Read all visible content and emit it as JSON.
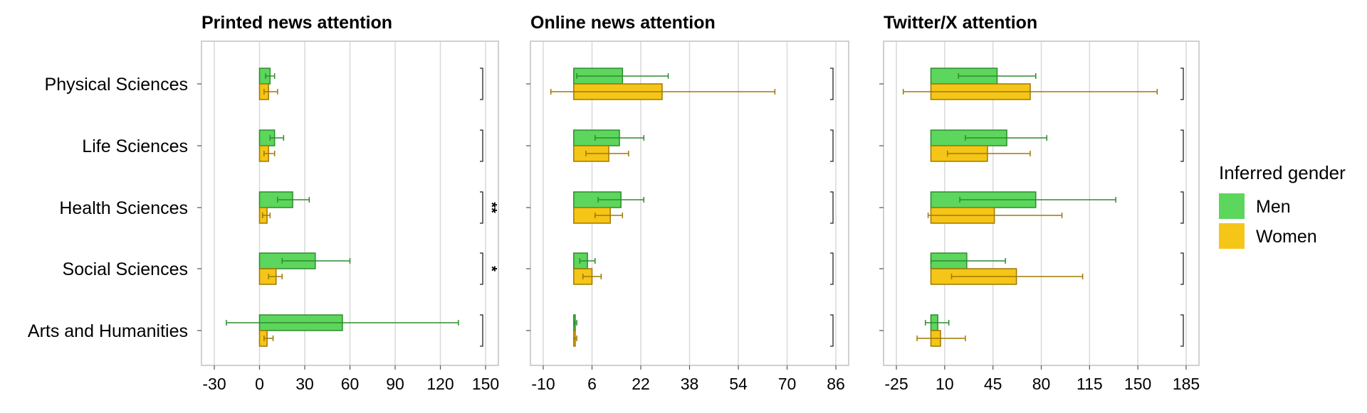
{
  "legend": {
    "title": "Inferred gender",
    "items": [
      {
        "label": "Men",
        "fill": "#5cd65c",
        "stroke": "#2e8b2e"
      },
      {
        "label": "Women",
        "fill": "#f5c518",
        "stroke": "#a07800"
      }
    ]
  },
  "chart_data": [
    {
      "type": "bar",
      "orientation": "horizontal",
      "title": "Printed news attention",
      "categories": [
        "Physical Sciences",
        "Life Sciences",
        "Health Sciences",
        "Social Sciences",
        "Arts and Humanities"
      ],
      "xticks": [
        -30,
        0,
        30,
        60,
        90,
        120,
        150
      ],
      "xlim": [
        -30,
        150
      ],
      "grid": true,
      "series": [
        {
          "name": "Men",
          "values": [
            7,
            10,
            22,
            37,
            55
          ],
          "err_low": [
            4,
            7,
            12,
            15,
            -22
          ],
          "err_high": [
            10,
            16,
            33,
            60,
            132
          ]
        },
        {
          "name": "Women",
          "values": [
            6,
            6,
            5,
            11,
            5
          ],
          "err_low": [
            3,
            3,
            2,
            6,
            3
          ],
          "err_high": [
            12,
            10,
            7,
            15,
            9
          ]
        }
      ],
      "significance": [
        "",
        "",
        "**",
        "*",
        ""
      ]
    },
    {
      "type": "bar",
      "orientation": "horizontal",
      "title": "Online news attention",
      "categories": [
        "Physical Sciences",
        "Life Sciences",
        "Health Sciences",
        "Social Sciences",
        "Arts and Humanities"
      ],
      "xticks": [
        -10,
        6,
        22,
        38,
        54,
        70,
        86
      ],
      "xlim": [
        -10,
        86
      ],
      "grid": true,
      "series": [
        {
          "name": "Men",
          "values": [
            16,
            15,
            15.5,
            4.5,
            0.5
          ],
          "err_low": [
            1,
            7,
            8,
            2,
            0.1
          ],
          "err_high": [
            31,
            23,
            23,
            7,
            1
          ]
        },
        {
          "name": "Women",
          "values": [
            29,
            11.5,
            12,
            6,
            0.5
          ],
          "err_low": [
            -7.5,
            4,
            7,
            3,
            0
          ],
          "err_high": [
            66,
            18,
            16,
            9,
            1
          ]
        }
      ],
      "significance": [
        "",
        "",
        "",
        "",
        ""
      ]
    },
    {
      "type": "bar",
      "orientation": "horizontal",
      "title": "Twitter/X attention",
      "categories": [
        "Physical Sciences",
        "Life Sciences",
        "Health Sciences",
        "Social Sciences",
        "Arts and Humanities"
      ],
      "xticks": [
        -25,
        10,
        45,
        80,
        115,
        150,
        185
      ],
      "xlim": [
        -25,
        185
      ],
      "grid": true,
      "series": [
        {
          "name": "Men",
          "values": [
            48,
            55,
            76,
            26,
            5
          ],
          "err_low": [
            20,
            25,
            21,
            0,
            -4
          ],
          "err_high": [
            76,
            84,
            134,
            54,
            13
          ]
        },
        {
          "name": "Women",
          "values": [
            72,
            41,
            46,
            62,
            7
          ],
          "err_low": [
            -20,
            12,
            -2,
            15,
            -10
          ],
          "err_high": [
            164,
            72,
            95,
            110,
            25
          ]
        }
      ],
      "significance": [
        "",
        "",
        "",
        "",
        ""
      ]
    }
  ]
}
